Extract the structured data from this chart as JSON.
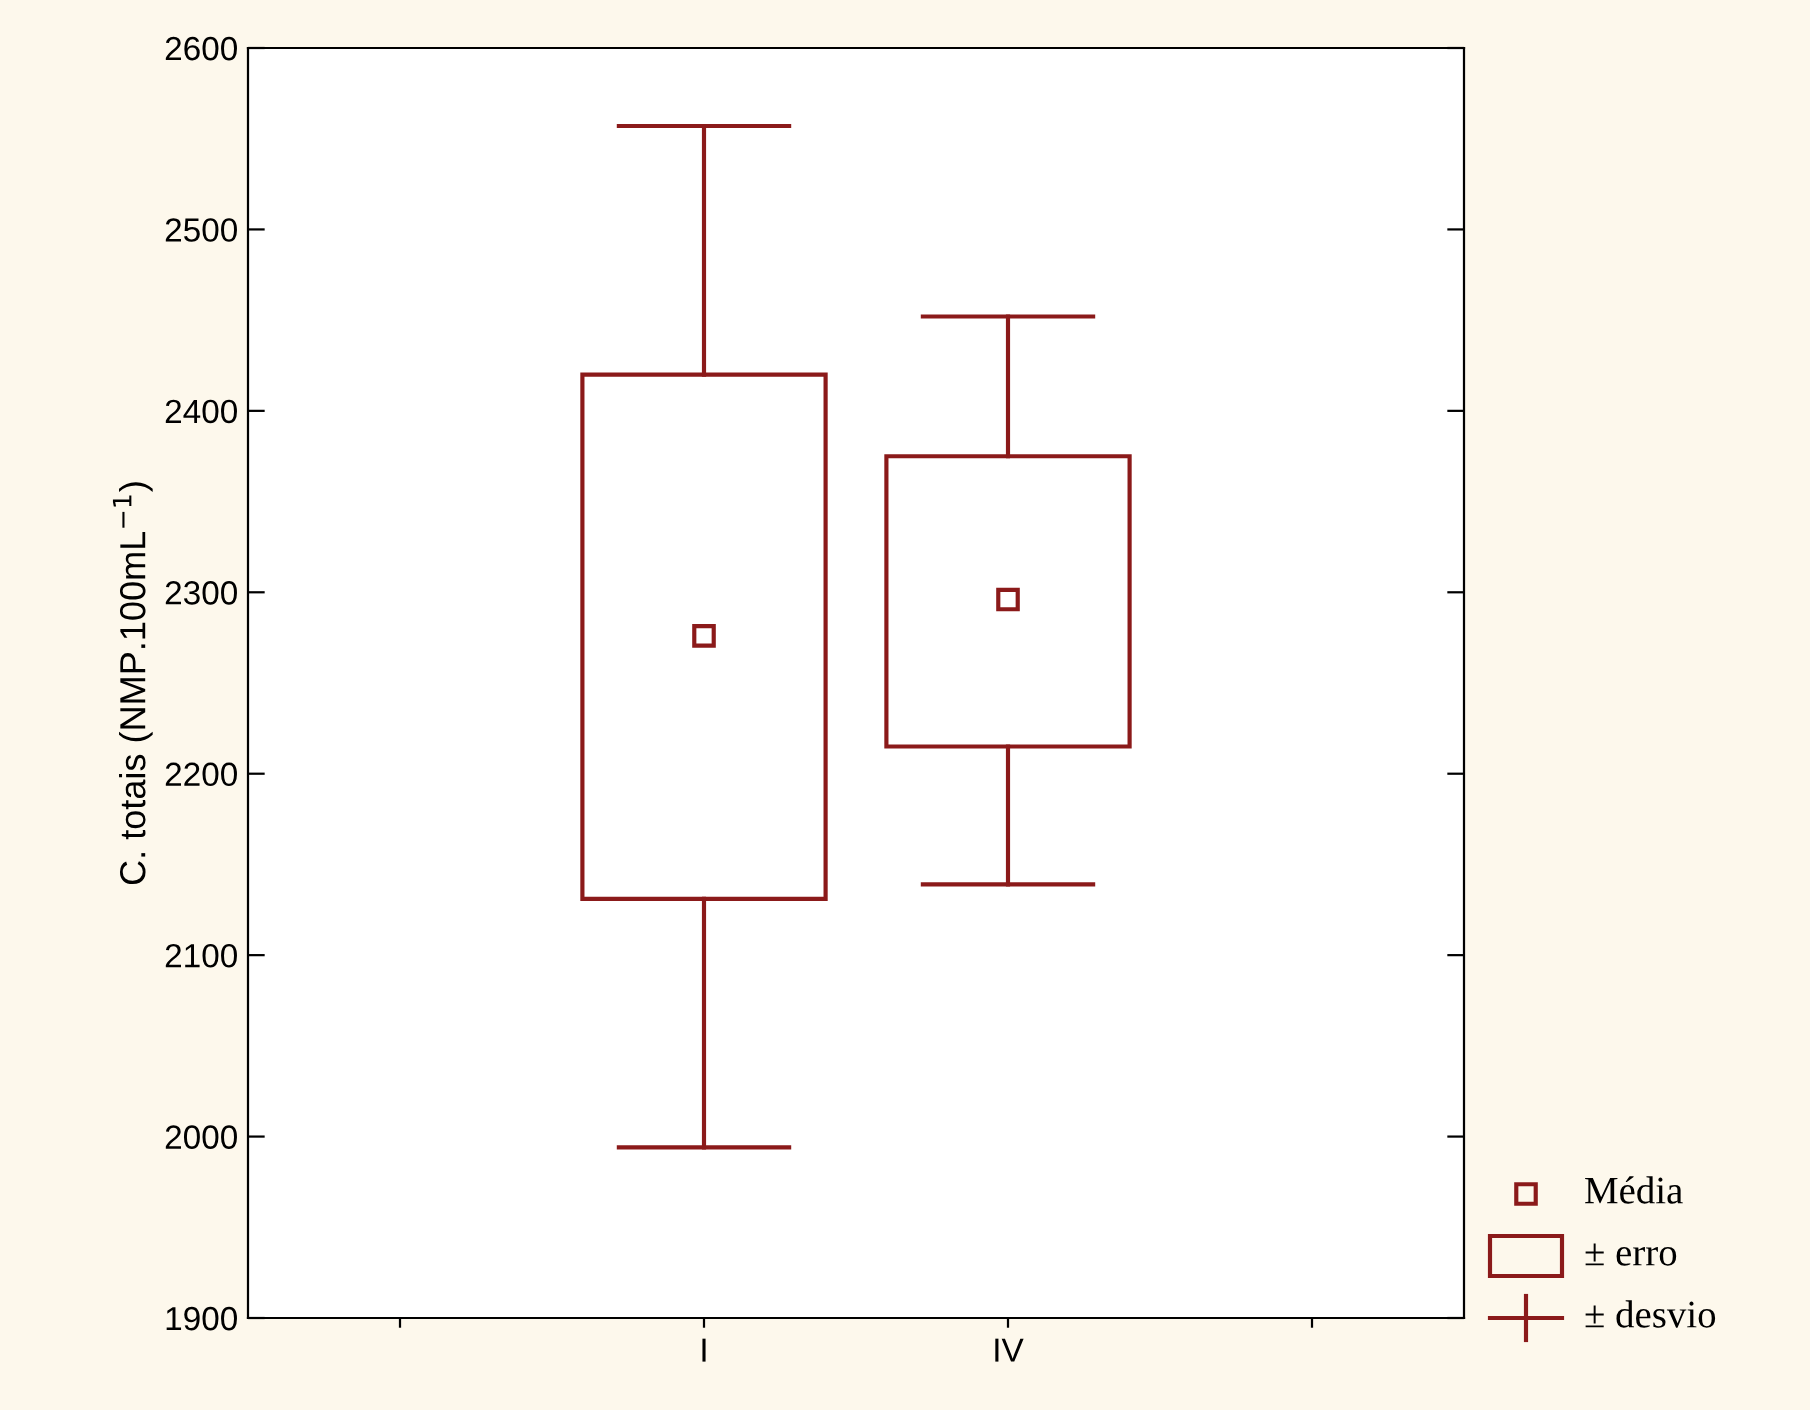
{
  "chart_data": {
    "type": "box",
    "ylabel": "C. totais (NMP.100mL$^{−1}$)",
    "categories": [
      null,
      "I",
      "IV",
      null
    ],
    "boxes": [
      null,
      {
        "low": 1994,
        "q1": 2131,
        "q3": 2420,
        "high": 2557,
        "mean": 2276
      },
      {
        "low": 2139,
        "q1": 2215,
        "q3": 2375,
        "high": 2452,
        "mean": 2296
      },
      null
    ],
    "color": "#8b1a1a",
    "ylim": [
      1900,
      2600
    ],
    "yticks": [
      1900,
      2000,
      2100,
      2200,
      2300,
      2400,
      2500,
      2600
    ],
    "annotations": [
      "Média",
      "± erro",
      "± desvio"
    ],
    "grid": false,
    "marker": "square"
  }
}
